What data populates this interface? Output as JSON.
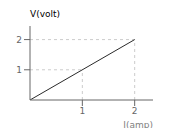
{
  "chart_data": {
    "type": "line",
    "xlabel": "I(amp)",
    "ylabel": "V(volt)",
    "x": [
      0,
      2
    ],
    "values": [
      0,
      2
    ],
    "color": "#2a2a2a",
    "reference_points": [
      {
        "x": 1,
        "y": 1
      },
      {
        "x": 2,
        "y": 2
      }
    ],
    "xlim": [
      0,
      2.35
    ],
    "ylim": [
      0,
      2.45
    ],
    "xticks": [
      1,
      2
    ],
    "yticks": [
      1,
      2
    ],
    "grid": false
  }
}
